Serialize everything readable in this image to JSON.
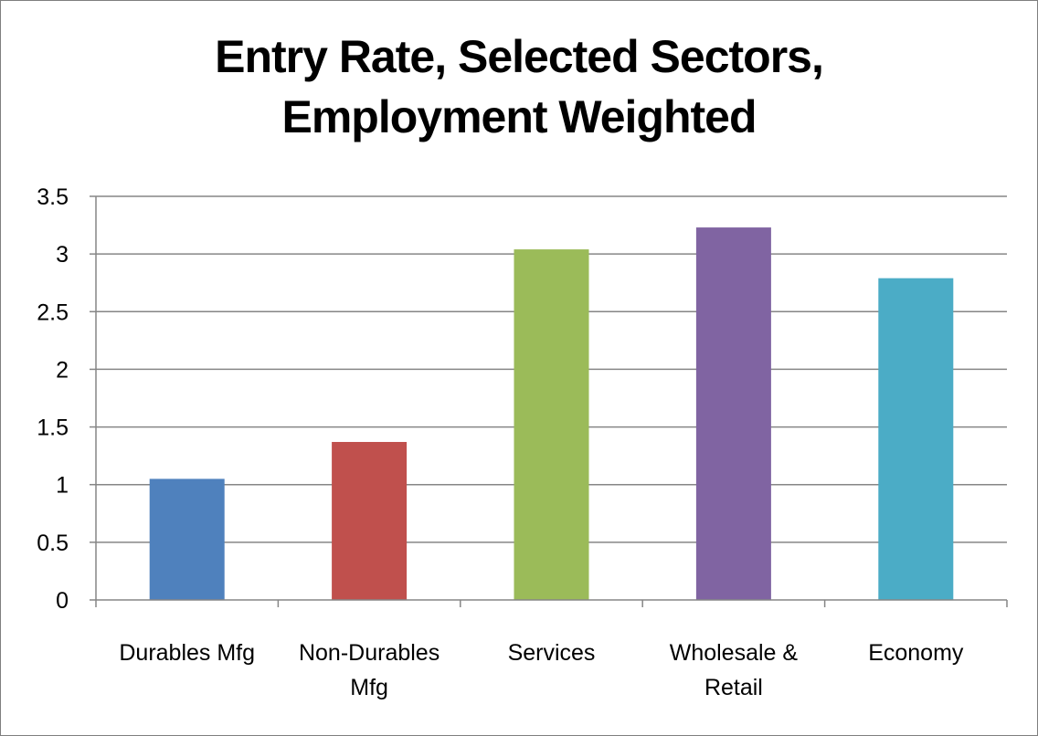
{
  "chart_data": {
    "type": "bar",
    "title": [
      "Entry Rate, Selected Sectors,",
      "Employment Weighted"
    ],
    "categories": [
      [
        "Durables Mfg"
      ],
      [
        "Non-Durables",
        "Mfg"
      ],
      [
        "Services"
      ],
      [
        "Wholesale &",
        "Retail"
      ],
      [
        "Economy"
      ]
    ],
    "values": [
      1.05,
      1.37,
      3.04,
      3.23,
      2.79
    ],
    "colors": [
      "#4f81bd",
      "#c0504d",
      "#9bbb59",
      "#8064a2",
      "#4bacc6"
    ],
    "ylim": [
      0,
      3.5
    ],
    "yticks": [
      0,
      0.5,
      1,
      1.5,
      2,
      2.5,
      3,
      3.5
    ],
    "ytick_labels": [
      "0",
      "0.5",
      "1",
      "1.5",
      "2",
      "2.5",
      "3",
      "3.5"
    ],
    "grid": true,
    "legend": "none",
    "gridline_color": "#868686",
    "xlabel": "",
    "ylabel": ""
  }
}
